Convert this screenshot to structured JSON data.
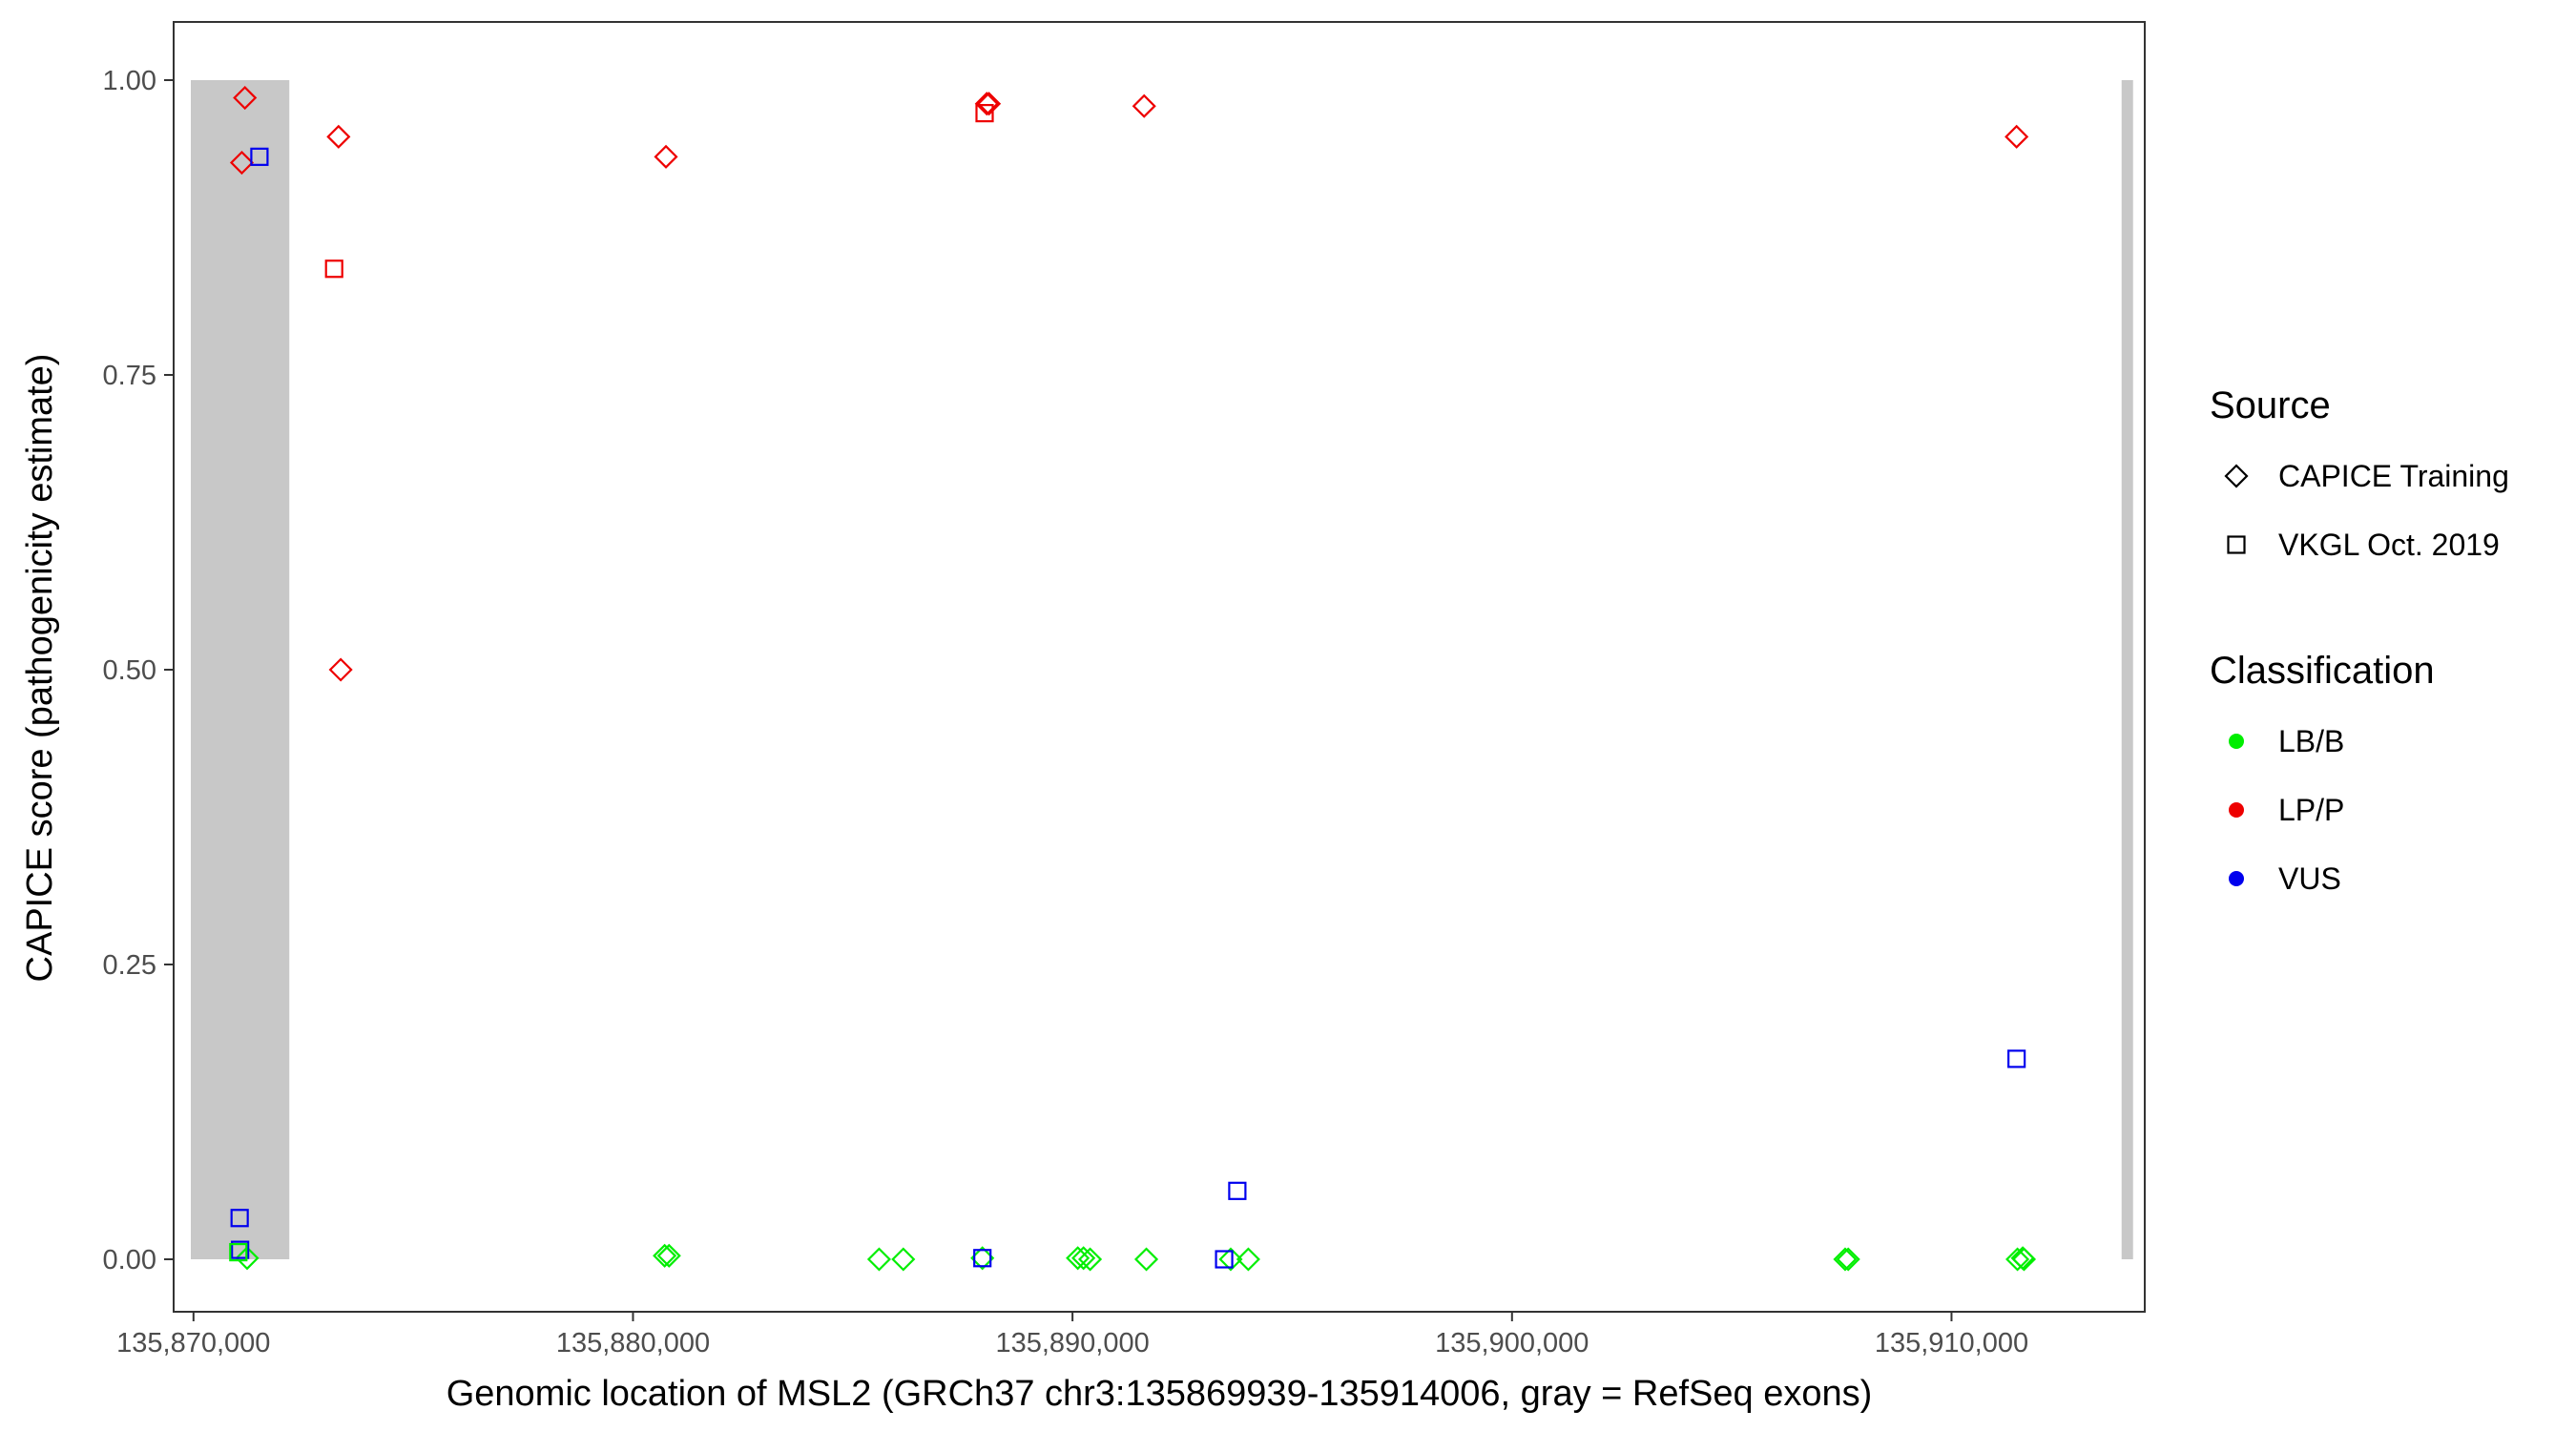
{
  "chart_data": {
    "type": "scatter",
    "title": "",
    "xlabel": "Genomic location of MSL2 (GRCh37 chr3:135869939-135914006, gray = RefSeq exons)",
    "ylabel": "CAPICE score (pathogenicity estimate)",
    "xlim": [
      135869939,
      135914006
    ],
    "ylim": [
      0,
      1
    ],
    "x_ticks": [
      135870000,
      135880000,
      135890000,
      135900000,
      135910000
    ],
    "x_tick_labels": [
      "135,870,000",
      "135,880,000",
      "135,890,000",
      "135,900,000",
      "135,910,000"
    ],
    "y_ticks": [
      0,
      0.25,
      0.5,
      0.75,
      1
    ],
    "y_tick_labels": [
      "0.00",
      "0.25",
      "0.50",
      "0.75",
      "1.00"
    ],
    "grid": false,
    "exons": [
      {
        "start": 135869939,
        "end": 135872180
      },
      {
        "start": 135913870,
        "end": 135914006
      }
    ],
    "exon_color": "#c8c8c8",
    "legends": [
      {
        "title": "Source",
        "items": [
          {
            "label": "CAPICE Training",
            "shape": "diamond"
          },
          {
            "label": "VKGL Oct. 2019",
            "shape": "square"
          }
        ]
      },
      {
        "title": "Classification",
        "items": [
          {
            "label": "LB/B",
            "color": "#00ee00"
          },
          {
            "label": "LP/P",
            "color": "#ee0000"
          },
          {
            "label": "VUS",
            "color": "#0000ee"
          }
        ]
      }
    ],
    "legend_position": "right",
    "series": [
      {
        "source": "CAPICE Training",
        "classification": "LP/P",
        "shape": "diamond",
        "color": "#ee0000",
        "points": [
          [
            135871170,
            0.985
          ],
          [
            135871100,
            0.93
          ],
          [
            135873300,
            0.952
          ],
          [
            135873350,
            0.5
          ],
          [
            135880750,
            0.935
          ],
          [
            135888050,
            0.98
          ],
          [
            135888100,
            0.98
          ],
          [
            135891630,
            0.978
          ],
          [
            135911480,
            0.952
          ]
        ]
      },
      {
        "source": "CAPICE Training",
        "classification": "LB/B",
        "shape": "diamond",
        "color": "#00ee00",
        "points": [
          [
            135871220,
            0.001
          ],
          [
            135880720,
            0.003
          ],
          [
            135880820,
            0.003
          ],
          [
            135885600,
            0.0
          ],
          [
            135886150,
            0.0
          ],
          [
            135887950,
            0.001
          ],
          [
            135890120,
            0.001
          ],
          [
            135890250,
            0.001
          ],
          [
            135890400,
            0.0
          ],
          [
            135891680,
            0.0
          ],
          [
            135893600,
            0.0
          ],
          [
            135894000,
            0.0
          ],
          [
            135907580,
            0.0
          ],
          [
            135907650,
            0.0
          ],
          [
            135911500,
            0.0
          ],
          [
            135911650,
            0.0
          ],
          [
            135911620,
            0.001
          ]
        ]
      },
      {
        "source": "VKGL Oct. 2019",
        "classification": "LP/P",
        "shape": "square",
        "color": "#ee0000",
        "points": [
          [
            135873200,
            0.84
          ],
          [
            135888000,
            0.972
          ]
        ]
      },
      {
        "source": "VKGL Oct. 2019",
        "classification": "VUS",
        "shape": "square",
        "color": "#0000ee",
        "points": [
          [
            135871500,
            0.935
          ],
          [
            135871050,
            0.035
          ],
          [
            135871060,
            0.008
          ],
          [
            135887950,
            0.001
          ],
          [
            135893450,
            0.0
          ],
          [
            135893750,
            0.058
          ],
          [
            135911480,
            0.17
          ]
        ]
      },
      {
        "source": "VKGL Oct. 2019",
        "classification": "LB/B",
        "shape": "square",
        "color": "#00ee00",
        "points": [
          [
            135871020,
            0.006
          ]
        ]
      }
    ]
  }
}
